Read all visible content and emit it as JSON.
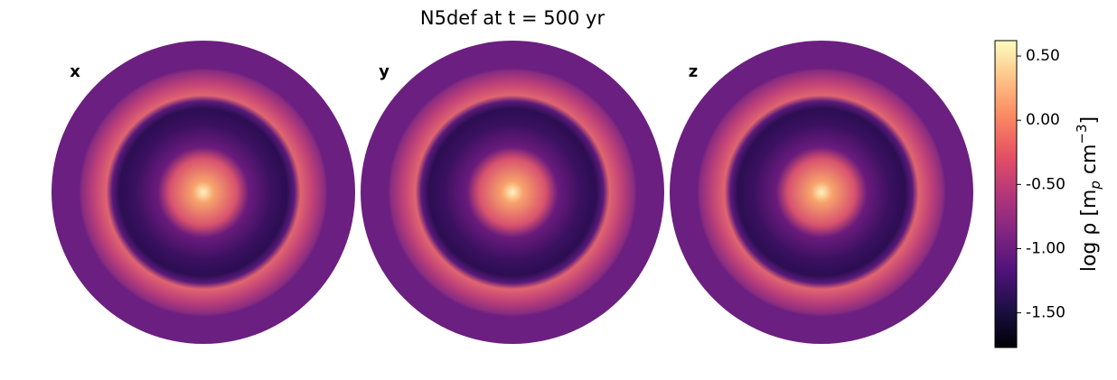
{
  "chart_data": {
    "type": "image",
    "title": "N5def at t = 500 yr",
    "panels": [
      "x",
      "y",
      "z"
    ],
    "colorbar": {
      "label_parts": [
        "log ρ [m",
        "p",
        " cm",
        "−3",
        "]"
      ],
      "lim": [
        -1.77,
        0.62
      ],
      "ticks": [
        {
          "value": 0.5,
          "label": "0.50"
        },
        {
          "value": 0.0,
          "label": "0.00"
        },
        {
          "value": -0.5,
          "label": "-0.50"
        },
        {
          "value": -1.0,
          "label": "-1.00"
        },
        {
          "value": -1.5,
          "label": "-1.50"
        }
      ],
      "colormap": [
        "#000004",
        "#1c1044",
        "#4f127b",
        "#812581",
        "#b5367a",
        "#e55064",
        "#fb8761",
        "#fec287",
        "#fcfdbf"
      ]
    }
  }
}
